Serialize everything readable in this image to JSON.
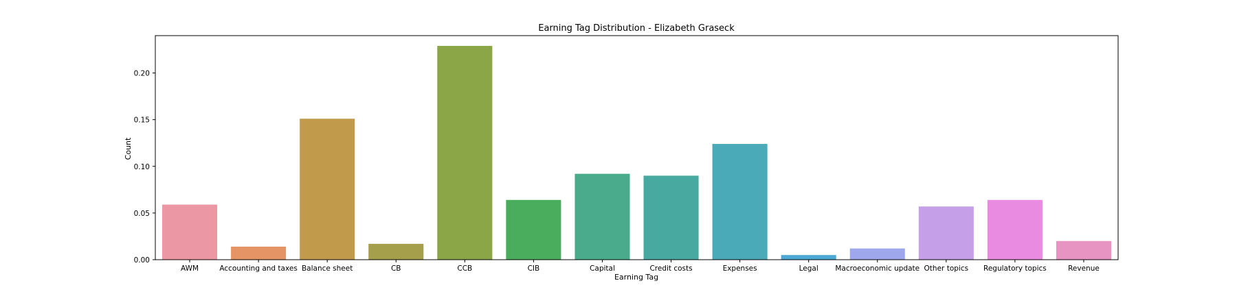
{
  "chart_data": {
    "type": "bar",
    "title": "Earning Tag Distribution - Elizabeth Graseck",
    "xlabel": "Earning Tag",
    "ylabel": "Count",
    "categories": [
      "AWM",
      "Accounting and taxes",
      "Balance sheet",
      "CB",
      "CCB",
      "CIB",
      "Capital",
      "Credit costs",
      "Expenses",
      "Legal",
      "Macroeconomic update",
      "Other topics",
      "Regulatory topics",
      "Revenue"
    ],
    "values": [
      0.059,
      0.014,
      0.151,
      0.017,
      0.229,
      0.064,
      0.092,
      0.09,
      0.124,
      0.005,
      0.012,
      0.057,
      0.064,
      0.02
    ],
    "colors": [
      "#eb98a4",
      "#e59465",
      "#c29a4b",
      "#a59e4a",
      "#8aa647",
      "#4aad5e",
      "#49ab8c",
      "#47a9a0",
      "#4aaab8",
      "#4ca9d3",
      "#9ea6ec",
      "#c59fe8",
      "#e98be0",
      "#e894c2"
    ],
    "ylim": [
      0,
      0.24
    ],
    "yticks": [
      0.0,
      0.05,
      0.1,
      0.15,
      0.2
    ],
    "ytick_labels": [
      "0.00",
      "0.05",
      "0.10",
      "0.15",
      "0.20"
    ],
    "grid": false,
    "legend": false
  }
}
